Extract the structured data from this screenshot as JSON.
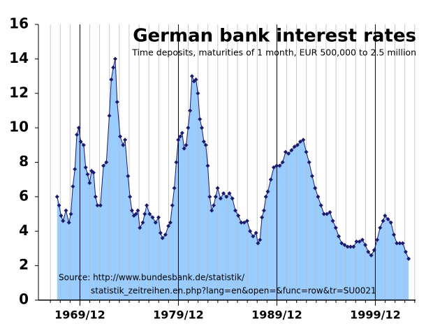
{
  "chart_data": {
    "type": "area",
    "title": "German bank interest rates",
    "subtitle": "Time deposits, maturities of 1 month, EUR 500,000 to 2.5 million",
    "annotations": [
      "Source: http://www.bundesbank.de/statistik/",
      "statistik_zeitreihen.en.php?lang=en&open=&func=row&tr=SU0021"
    ],
    "x": [
      1967.6,
      1967.8,
      1968.0,
      1968.2,
      1968.5,
      1968.8,
      1969.0,
      1969.2,
      1969.4,
      1969.6,
      1969.8,
      1970.0,
      1970.3,
      1970.5,
      1970.7,
      1970.9,
      1971.1,
      1971.3,
      1971.5,
      1971.7,
      1972.0,
      1972.3,
      1972.6,
      1972.9,
      1973.1,
      1973.3,
      1973.5,
      1973.7,
      1974.0,
      1974.3,
      1974.5,
      1974.8,
      1975.0,
      1975.2,
      1975.4,
      1975.6,
      1975.8,
      1976.0,
      1976.3,
      1976.5,
      1976.7,
      1977.0,
      1977.3,
      1977.6,
      1977.9,
      1978.1,
      1978.3,
      1978.6,
      1978.9,
      1979.1,
      1979.3,
      1979.5,
      1979.7,
      1979.9,
      1980.1,
      1980.3,
      1980.5,
      1980.7,
      1980.9,
      1981.1,
      1981.3,
      1981.5,
      1981.7,
      1981.9,
      1982.1,
      1982.3,
      1982.5,
      1982.7,
      1982.9,
      1983.1,
      1983.3,
      1983.5,
      1983.7,
      1983.9,
      1984.2,
      1984.5,
      1984.8,
      1985.1,
      1985.4,
      1985.7,
      1986.0,
      1986.3,
      1986.6,
      1986.9,
      1987.2,
      1987.5,
      1987.8,
      1988.0,
      1988.2,
      1988.4,
      1988.6,
      1988.8,
      1989.0,
      1989.3,
      1989.6,
      1989.9,
      1990.2,
      1990.5,
      1990.8,
      1991.1,
      1991.4,
      1991.7,
      1992.0,
      1992.3,
      1992.6,
      1992.9,
      1993.2,
      1993.5,
      1993.8,
      1994.1,
      1994.4,
      1994.7,
      1995.0,
      1995.3,
      1995.6,
      1995.9,
      1996.2,
      1996.5,
      1996.8,
      1997.1,
      1997.4,
      1997.7,
      1998.0,
      1998.3,
      1998.6,
      1998.9,
      1999.2,
      1999.5,
      1999.8,
      2000.1,
      2000.4,
      2000.7,
      2000.9,
      2001.2,
      2001.5,
      2001.8,
      2002.1,
      2002.4,
      2002.7,
      2003.0,
      2003.3
    ],
    "values": [
      6.0,
      5.5,
      4.9,
      4.6,
      5.2,
      4.5,
      5.0,
      6.6,
      7.6,
      9.6,
      10.0,
      9.2,
      9.0,
      7.7,
      7.3,
      6.8,
      7.5,
      7.4,
      6.0,
      5.5,
      5.5,
      7.8,
      8.0,
      10.7,
      12.8,
      13.5,
      14.0,
      11.5,
      9.5,
      9.0,
      9.3,
      7.2,
      6.0,
      5.2,
      4.9,
      5.0,
      5.2,
      4.2,
      4.5,
      5.0,
      5.5,
      5.0,
      4.8,
      4.5,
      4.8,
      3.9,
      3.6,
      3.8,
      4.3,
      4.5,
      5.5,
      6.5,
      8.0,
      9.3,
      9.5,
      9.7,
      8.8,
      9.0,
      10.0,
      11.0,
      13.0,
      12.7,
      12.8,
      12.0,
      10.5,
      10.0,
      9.2,
      9.0,
      7.8,
      6.0,
      5.2,
      5.5,
      6.0,
      6.5,
      5.9,
      6.2,
      6.0,
      6.2,
      5.9,
      5.2,
      4.9,
      4.5,
      4.5,
      4.6,
      4.0,
      3.7,
      3.9,
      3.3,
      3.5,
      4.8,
      5.2,
      6.0,
      6.3,
      7.0,
      7.7,
      7.8,
      7.8,
      8.0,
      8.6,
      8.5,
      8.7,
      8.9,
      9.0,
      9.2,
      9.3,
      8.6,
      8.0,
      7.2,
      6.5,
      6.0,
      5.5,
      5.0,
      5.0,
      5.1,
      4.6,
      4.2,
      3.7,
      3.3,
      3.2,
      3.1,
      3.1,
      3.1,
      3.4,
      3.4,
      3.5,
      3.2,
      2.8,
      2.6,
      2.9,
      3.5,
      4.2,
      4.6,
      4.9,
      4.7,
      4.5,
      3.8,
      3.3,
      3.3,
      3.3,
      2.8,
      2.4
    ],
    "color": "#1a1a6e",
    "fill_color": "#99ccff",
    "xlim": [
      1965.7,
      2004.0
    ],
    "ylim": [
      0,
      16
    ],
    "xticks": [
      {
        "value": 1969.917,
        "label": "1969/12"
      },
      {
        "value": 1979.917,
        "label": "1979/12"
      },
      {
        "value": 1989.917,
        "label": "1989/12"
      },
      {
        "value": 1999.917,
        "label": "1999/12"
      }
    ],
    "xminor_ticks": [
      1966.917,
      1967.917,
      1968.917,
      1970.917,
      1971.917,
      1972.917,
      1973.917,
      1974.917,
      1975.917,
      1976.917,
      1977.917,
      1978.917,
      1980.917,
      1981.917,
      1982.917,
      1983.917,
      1984.917,
      1985.917,
      1986.917,
      1987.917,
      1988.917,
      1990.917,
      1991.917,
      1992.917,
      1993.917,
      1994.917,
      1995.917,
      1996.917,
      1997.917,
      1998.917,
      2000.917,
      2001.917,
      2002.917,
      2003.917
    ],
    "yticks": [
      0,
      2,
      4,
      6,
      8,
      10,
      12,
      14,
      16
    ]
  }
}
